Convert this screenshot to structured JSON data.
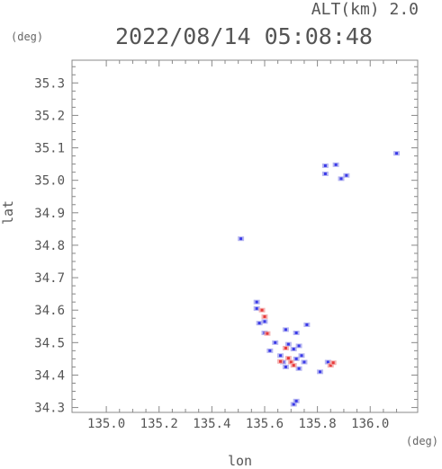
{
  "header": {
    "altitude": "ALT(km) 2.0",
    "timestamp": "2022/08/14 05:08:48"
  },
  "chart_data": {
    "type": "scatter",
    "title": "2022/08/14 05:08:48",
    "subtitle": "ALT(km) 2.0",
    "xlabel": "lon",
    "ylabel": "lat",
    "x_unit": "(deg)",
    "y_unit": "(deg)",
    "xlim": [
      134.87,
      136.18
    ],
    "ylim": [
      34.285,
      35.37
    ],
    "x_ticks": [
      "135.0",
      "135.2",
      "135.4",
      "135.6",
      "135.8",
      "136.0"
    ],
    "y_ticks": [
      "35.3",
      "35.2",
      "35.1",
      "35.0",
      "34.9",
      "34.8",
      "34.7",
      "34.6",
      "34.5",
      "34.4",
      "34.3"
    ],
    "grid": false,
    "colors": {
      "positive": "#e83a3a",
      "negative": "#3a3ae8",
      "positive_light": "#f2a6a6",
      "negative_light": "#a9a9ef"
    },
    "series": [
      {
        "polarity": "negative",
        "points": [
          [
            136.1,
            35.083
          ],
          [
            135.87,
            35.048
          ],
          [
            135.83,
            35.045
          ],
          [
            135.83,
            35.02
          ],
          [
            135.89,
            35.005
          ],
          [
            135.91,
            35.015
          ],
          [
            135.51,
            34.82
          ],
          [
            135.57,
            34.625
          ],
          [
            135.57,
            34.605
          ],
          [
            135.6,
            34.565
          ],
          [
            135.58,
            34.56
          ],
          [
            135.6,
            34.53
          ],
          [
            135.68,
            34.54
          ],
          [
            135.72,
            34.53
          ],
          [
            135.76,
            34.555
          ],
          [
            135.64,
            34.5
          ],
          [
            135.69,
            34.495
          ],
          [
            135.71,
            34.48
          ],
          [
            135.73,
            34.49
          ],
          [
            135.62,
            34.475
          ],
          [
            135.66,
            34.46
          ],
          [
            135.67,
            34.44
          ],
          [
            135.68,
            34.425
          ],
          [
            135.72,
            34.45
          ],
          [
            135.74,
            34.46
          ],
          [
            135.75,
            34.44
          ],
          [
            135.73,
            34.42
          ],
          [
            135.84,
            34.44
          ],
          [
            135.81,
            34.41
          ],
          [
            135.71,
            34.31
          ],
          [
            135.72,
            34.32
          ]
        ]
      },
      {
        "polarity": "positive",
        "points": [
          [
            135.59,
            34.6
          ],
          [
            135.6,
            34.58
          ],
          [
            135.61,
            34.528
          ],
          [
            135.68,
            34.483
          ],
          [
            135.66,
            34.442
          ],
          [
            135.69,
            34.452
          ],
          [
            135.7,
            34.44
          ],
          [
            135.71,
            34.43
          ],
          [
            135.85,
            34.43
          ],
          [
            135.86,
            34.438
          ]
        ]
      }
    ]
  }
}
